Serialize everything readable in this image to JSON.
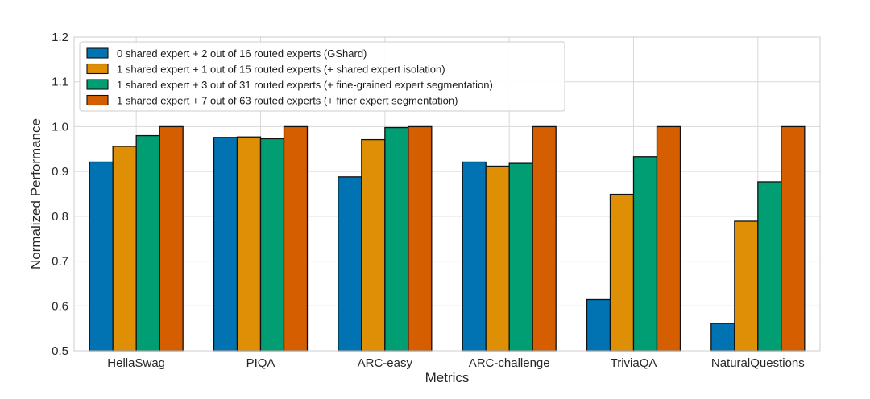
{
  "chart_data": {
    "type": "bar",
    "xlabel": "Metrics",
    "ylabel": "Normalized Performance",
    "ylim": [
      0.5,
      1.2
    ],
    "yticks": [
      "0.5",
      "0.6",
      "0.7",
      "0.8",
      "0.9",
      "1.0",
      "1.1",
      "1.2"
    ],
    "grid": true,
    "legend_position": "top-left",
    "categories": [
      "HellaSwag",
      "PIQA",
      "ARC-easy",
      "ARC-challenge",
      "TriviaQA",
      "NaturalQuestions"
    ],
    "series": [
      {
        "name": "0 shared expert + 2 out of 16 routed experts (GShard)",
        "color": "#0173b2",
        "values": [
          0.921,
          0.976,
          0.888,
          0.921,
          0.614,
          0.561
        ]
      },
      {
        "name": "1 shared expert + 1 out of 15 routed experts (+ shared expert isolation)",
        "color": "#de8f05",
        "values": [
          0.956,
          0.977,
          0.971,
          0.912,
          0.849,
          0.789
        ]
      },
      {
        "name": "1 shared expert + 3 out of 31 routed experts (+ fine-grained expert segmentation)",
        "color": "#029e73",
        "values": [
          0.98,
          0.973,
          0.998,
          0.918,
          0.933,
          0.877
        ]
      },
      {
        "name": "1 shared expert + 7 out of 63 routed experts (+ finer expert segmentation)",
        "color": "#d55e00",
        "values": [
          1.0,
          1.0,
          1.0,
          1.0,
          1.0,
          1.0
        ]
      }
    ]
  }
}
